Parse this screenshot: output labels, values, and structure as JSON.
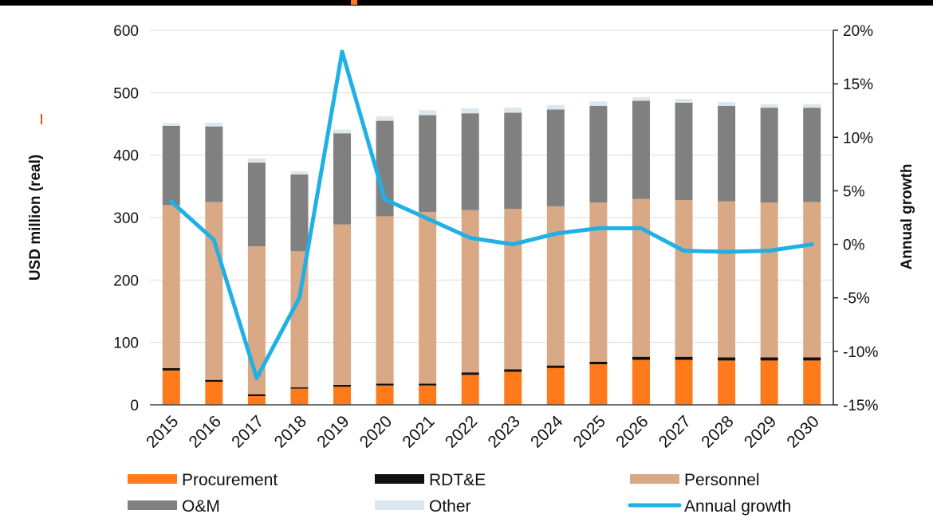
{
  "chart_data": {
    "type": "bar",
    "stacked": true,
    "title": "",
    "categories": [
      "2015",
      "2016",
      "2017",
      "2018",
      "2019",
      "2020",
      "2021",
      "2022",
      "2023",
      "2024",
      "2025",
      "2026",
      "2027",
      "2028",
      "2029",
      "2030"
    ],
    "ylabel": "USD million (real)",
    "ylabel_right": "Annual growth",
    "ylim": [
      0,
      600
    ],
    "yticks": [
      0,
      100,
      200,
      300,
      400,
      500,
      600
    ],
    "y2lim": [
      -15,
      20
    ],
    "y2ticks": [
      "-15%",
      "-10%",
      "-5%",
      "0%",
      "5%",
      "10%",
      "15%",
      "20%"
    ],
    "grid": "horizontal",
    "legend_position": "bottom",
    "series": [
      {
        "name": "Procurement",
        "color": "#ff7a1a",
        "values": [
          55,
          37,
          14,
          26,
          29,
          31,
          31,
          48,
          53,
          59,
          65,
          72,
          72,
          71,
          71,
          71
        ]
      },
      {
        "name": "RDT&E",
        "color": "#111111",
        "values": [
          4,
          3,
          3,
          2,
          3,
          3,
          3,
          4,
          4,
          4,
          4,
          5,
          5,
          5,
          5,
          5
        ]
      },
      {
        "name": "Personnel",
        "color": "#d9a884",
        "values": [
          261,
          285,
          237,
          218,
          257,
          268,
          275,
          260,
          257,
          255,
          255,
          253,
          251,
          250,
          248,
          249
        ]
      },
      {
        "name": "O&M",
        "color": "#808080",
        "values": [
          127,
          121,
          134,
          123,
          146,
          153,
          155,
          155,
          154,
          155,
          155,
          157,
          156,
          153,
          152,
          151
        ]
      },
      {
        "name": "Other",
        "color": "#dce8ee",
        "values": [
          4,
          6,
          7,
          5,
          6,
          7,
          8,
          8,
          8,
          7,
          7,
          6,
          6,
          6,
          6,
          6
        ]
      }
    ],
    "line_series": {
      "name": "Annual growth",
      "color": "#1fb0e6",
      "axis": "right",
      "values": [
        4.0,
        0.4,
        -12.5,
        -5.0,
        18.0,
        4.2,
        2.4,
        0.6,
        0.0,
        1.0,
        1.5,
        1.5,
        -0.6,
        -0.7,
        -0.6,
        0.0
      ]
    },
    "legend": [
      "Procurement",
      "RDT&E",
      "Personnel",
      "O&M",
      "Other",
      "Annual growth"
    ]
  }
}
